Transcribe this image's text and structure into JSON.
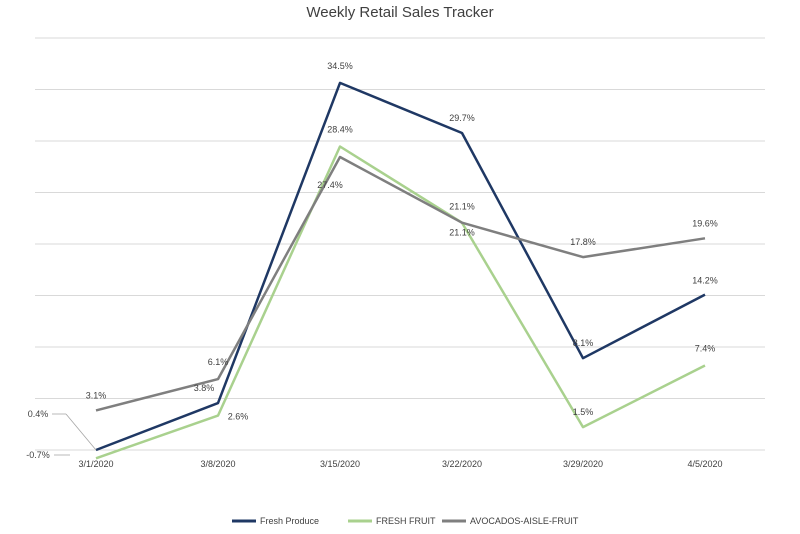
{
  "chart_data": {
    "type": "line",
    "title": "Weekly Retail Sales Tracker",
    "xlabel": "",
    "ylabel": "",
    "categories": [
      "3/1/2020",
      "3/8/2020",
      "3/15/2020",
      "3/22/2020",
      "3/29/2020",
      "4/5/2020"
    ],
    "ylim": [
      -0.7,
      39
    ],
    "grid": true,
    "legend_position": "bottom",
    "series": [
      {
        "name": "Fresh Produce",
        "color": "#1f3864",
        "values": [
          -0.7,
          3.8,
          34.5,
          29.7,
          8.1,
          14.2
        ],
        "labels": [
          "",
          "3.8%",
          "34.5%",
          "29.7%",
          "8.1%",
          "14.2%"
        ]
      },
      {
        "name": "FRESH FRUIT",
        "color": "#a9d18e",
        "values": [
          -1.5,
          2.6,
          28.4,
          21.1,
          1.5,
          7.4
        ],
        "labels": [
          "",
          "2.6%",
          "28.4%",
          "21.1%",
          "1.5%",
          "7.4%"
        ]
      },
      {
        "name": "AVOCADOS-AISLE-FRUIT",
        "color": "#7f7f7f",
        "values": [
          3.1,
          6.1,
          27.4,
          21.1,
          17.8,
          19.6
        ],
        "labels": [
          "3.1%",
          "6.1%",
          "27.4%",
          "21.1%",
          "17.8%",
          "19.6%"
        ]
      }
    ],
    "callouts": [
      "0.4%",
      "-0.7%"
    ]
  }
}
